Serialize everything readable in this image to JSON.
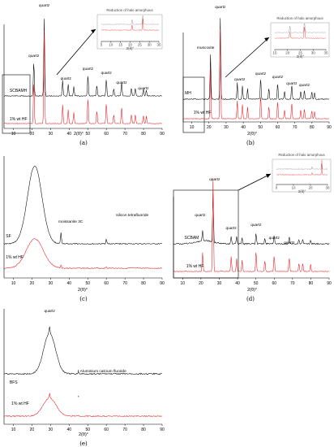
{
  "chart_data": [
    {
      "id": "a",
      "type": "line",
      "panel_label": "(a)",
      "xlabel": "2(θ)°",
      "xlim": [
        5,
        90
      ],
      "xticks": [
        10,
        20,
        30,
        40,
        50,
        60,
        70,
        80,
        90
      ],
      "series": [
        {
          "name": "SCBAMH",
          "color": "#000000"
        },
        {
          "name": "1% wt HF",
          "color": "#e8191e"
        }
      ],
      "peaks": [
        {
          "x": 21,
          "h": 0.45
        },
        {
          "x": 26.6,
          "h": 1.0
        },
        {
          "x": 36.5,
          "h": 0.2
        },
        {
          "x": 39.5,
          "h": 0.15
        },
        {
          "x": 42.5,
          "h": 0.12
        },
        {
          "x": 50.1,
          "h": 0.28
        },
        {
          "x": 54.9,
          "h": 0.14
        },
        {
          "x": 60,
          "h": 0.22
        },
        {
          "x": 64,
          "h": 0.1
        },
        {
          "x": 68.2,
          "h": 0.18
        },
        {
          "x": 73.5,
          "h": 0.1
        },
        {
          "x": 75.6,
          "h": 0.1
        },
        {
          "x": 79.9,
          "h": 0.09
        },
        {
          "x": 81.5,
          "h": 0.08
        }
      ],
      "annotations": [
        {
          "text": "quartz",
          "x": 21
        },
        {
          "text": "quartz",
          "x": 26.6
        },
        {
          "text": "quartz",
          "x": 36.5
        },
        {
          "text": "quartz",
          "x": 50.1
        },
        {
          "text": "quartz",
          "x": 60
        },
        {
          "text": "quartz",
          "x": 68.2
        },
        {
          "text": "quartz",
          "x": 79.9
        }
      ],
      "inset": {
        "title": "Reduction of halo amorphous",
        "xlabel": "2(θ)°",
        "xlim": [
          5,
          35
        ],
        "xticks": [
          5,
          10,
          15,
          20,
          25,
          30,
          35
        ]
      }
    },
    {
      "id": "b",
      "type": "line",
      "panel_label": "(b)",
      "xlabel": "2(θ)°",
      "xlim": [
        5,
        90
      ],
      "xticks": [
        10,
        20,
        30,
        40,
        50,
        60,
        70,
        80,
        90
      ],
      "series": [
        {
          "name": "MH",
          "color": "#000000"
        },
        {
          "name": "1% wt HF",
          "color": "#e8191e"
        }
      ],
      "peaks": [
        {
          "x": 20.9,
          "h": 0.55
        },
        {
          "x": 26.6,
          "h": 1.0
        },
        {
          "x": 36.5,
          "h": 0.2
        },
        {
          "x": 39.5,
          "h": 0.16
        },
        {
          "x": 42.5,
          "h": 0.13
        },
        {
          "x": 50.1,
          "h": 0.26
        },
        {
          "x": 54.9,
          "h": 0.14
        },
        {
          "x": 60,
          "h": 0.2
        },
        {
          "x": 64,
          "h": 0.1
        },
        {
          "x": 68.2,
          "h": 0.18
        },
        {
          "x": 73.5,
          "h": 0.1
        },
        {
          "x": 75.6,
          "h": 0.11
        },
        {
          "x": 79.9,
          "h": 0.09
        },
        {
          "x": 81.5,
          "h": 0.08
        }
      ],
      "annotations": [
        {
          "text": "muscovite",
          "x": 20.9
        },
        {
          "text": "quartz",
          "x": 26.6
        },
        {
          "text": "quartz",
          "x": 36.5
        },
        {
          "text": "quartz",
          "x": 50.1
        },
        {
          "text": "quartz",
          "x": 60
        },
        {
          "text": "quartz",
          "x": 68.2
        },
        {
          "text": "quartz",
          "x": 75.6
        }
      ],
      "inset": {
        "title": "Reduction of halo amorphous",
        "xlabel": "2(θ)°",
        "xlim": [
          15,
          35
        ],
        "xticks": [
          15,
          20,
          25,
          30,
          35
        ]
      }
    },
    {
      "id": "c",
      "type": "line",
      "panel_label": "(c)",
      "xlabel": "2(θ)°",
      "xlim": [
        5,
        90
      ],
      "xticks": [
        10,
        20,
        30,
        40,
        50,
        60,
        70,
        80,
        90
      ],
      "series": [
        {
          "name": "SF",
          "color": "#000000"
        },
        {
          "name": "1% wt HF",
          "color": "#e8191e"
        }
      ],
      "peaks": [
        {
          "x": 35.6,
          "h": 0.22
        },
        {
          "x": 60,
          "h": 0.1
        }
      ],
      "annotations": [
        {
          "text": "moissanite 3C",
          "x": 35.6
        },
        {
          "text": "silicon tetrafluoride",
          "x": 60
        }
      ]
    },
    {
      "id": "d",
      "type": "line",
      "panel_label": "(d)",
      "xlabel": "2(θ)°",
      "xlim": [
        5,
        90
      ],
      "xticks": [
        10,
        20,
        30,
        40,
        50,
        60,
        70,
        80,
        90
      ],
      "series": [
        {
          "name": "SCBAM",
          "color": "#000000"
        },
        {
          "name": "1% wt HF",
          "color": "#e8191e"
        }
      ],
      "peaks": [
        {
          "x": 20.9,
          "h": 0.2
        },
        {
          "x": 26.6,
          "h": 1.0
        },
        {
          "x": 36.5,
          "h": 0.16
        },
        {
          "x": 39.5,
          "h": 0.14
        },
        {
          "x": 42.5,
          "h": 0.12
        },
        {
          "x": 50.1,
          "h": 0.22
        },
        {
          "x": 54.9,
          "h": 0.12
        },
        {
          "x": 60,
          "h": 0.17
        },
        {
          "x": 68.2,
          "h": 0.15
        },
        {
          "x": 73.5,
          "h": 0.09
        },
        {
          "x": 75.6,
          "h": 0.09
        },
        {
          "x": 79.9,
          "h": 0.08
        }
      ],
      "annotations": [
        {
          "text": "quartz",
          "x": 26.6
        },
        {
          "text": "quartz",
          "x": 20.9
        },
        {
          "text": "quartz",
          "x": 36.5
        },
        {
          "text": "quartz",
          "x": 50.1
        },
        {
          "text": "quartz",
          "x": 60
        },
        {
          "text": "quartz",
          "x": 68.2
        }
      ],
      "inset": {
        "title": "Reduction of halo amorphous",
        "xlabel": "2(θ)°",
        "xlim": [
          0,
          30
        ],
        "xticks": [
          0,
          10,
          20,
          30
        ]
      }
    },
    {
      "id": "e",
      "type": "line",
      "panel_label": "(e)",
      "xlabel": "2(θ)°",
      "xlim": [
        5,
        90
      ],
      "xticks": [
        10,
        20,
        30,
        40,
        50,
        60,
        70,
        80,
        90
      ],
      "series": [
        {
          "name": "BFS",
          "color": "#000000"
        },
        {
          "name": "1% wt HF",
          "color": "#e8191e"
        }
      ],
      "peaks": [
        {
          "x": 29.5,
          "h": 0.3
        },
        {
          "x": 45,
          "h": 0.08
        }
      ],
      "annotations": [
        {
          "text": "quartz",
          "x": 29.5
        },
        {
          "text": "* Aluminium calcium fluoride",
          "x": 45
        },
        {
          "text": "*",
          "x": 45
        }
      ]
    }
  ]
}
